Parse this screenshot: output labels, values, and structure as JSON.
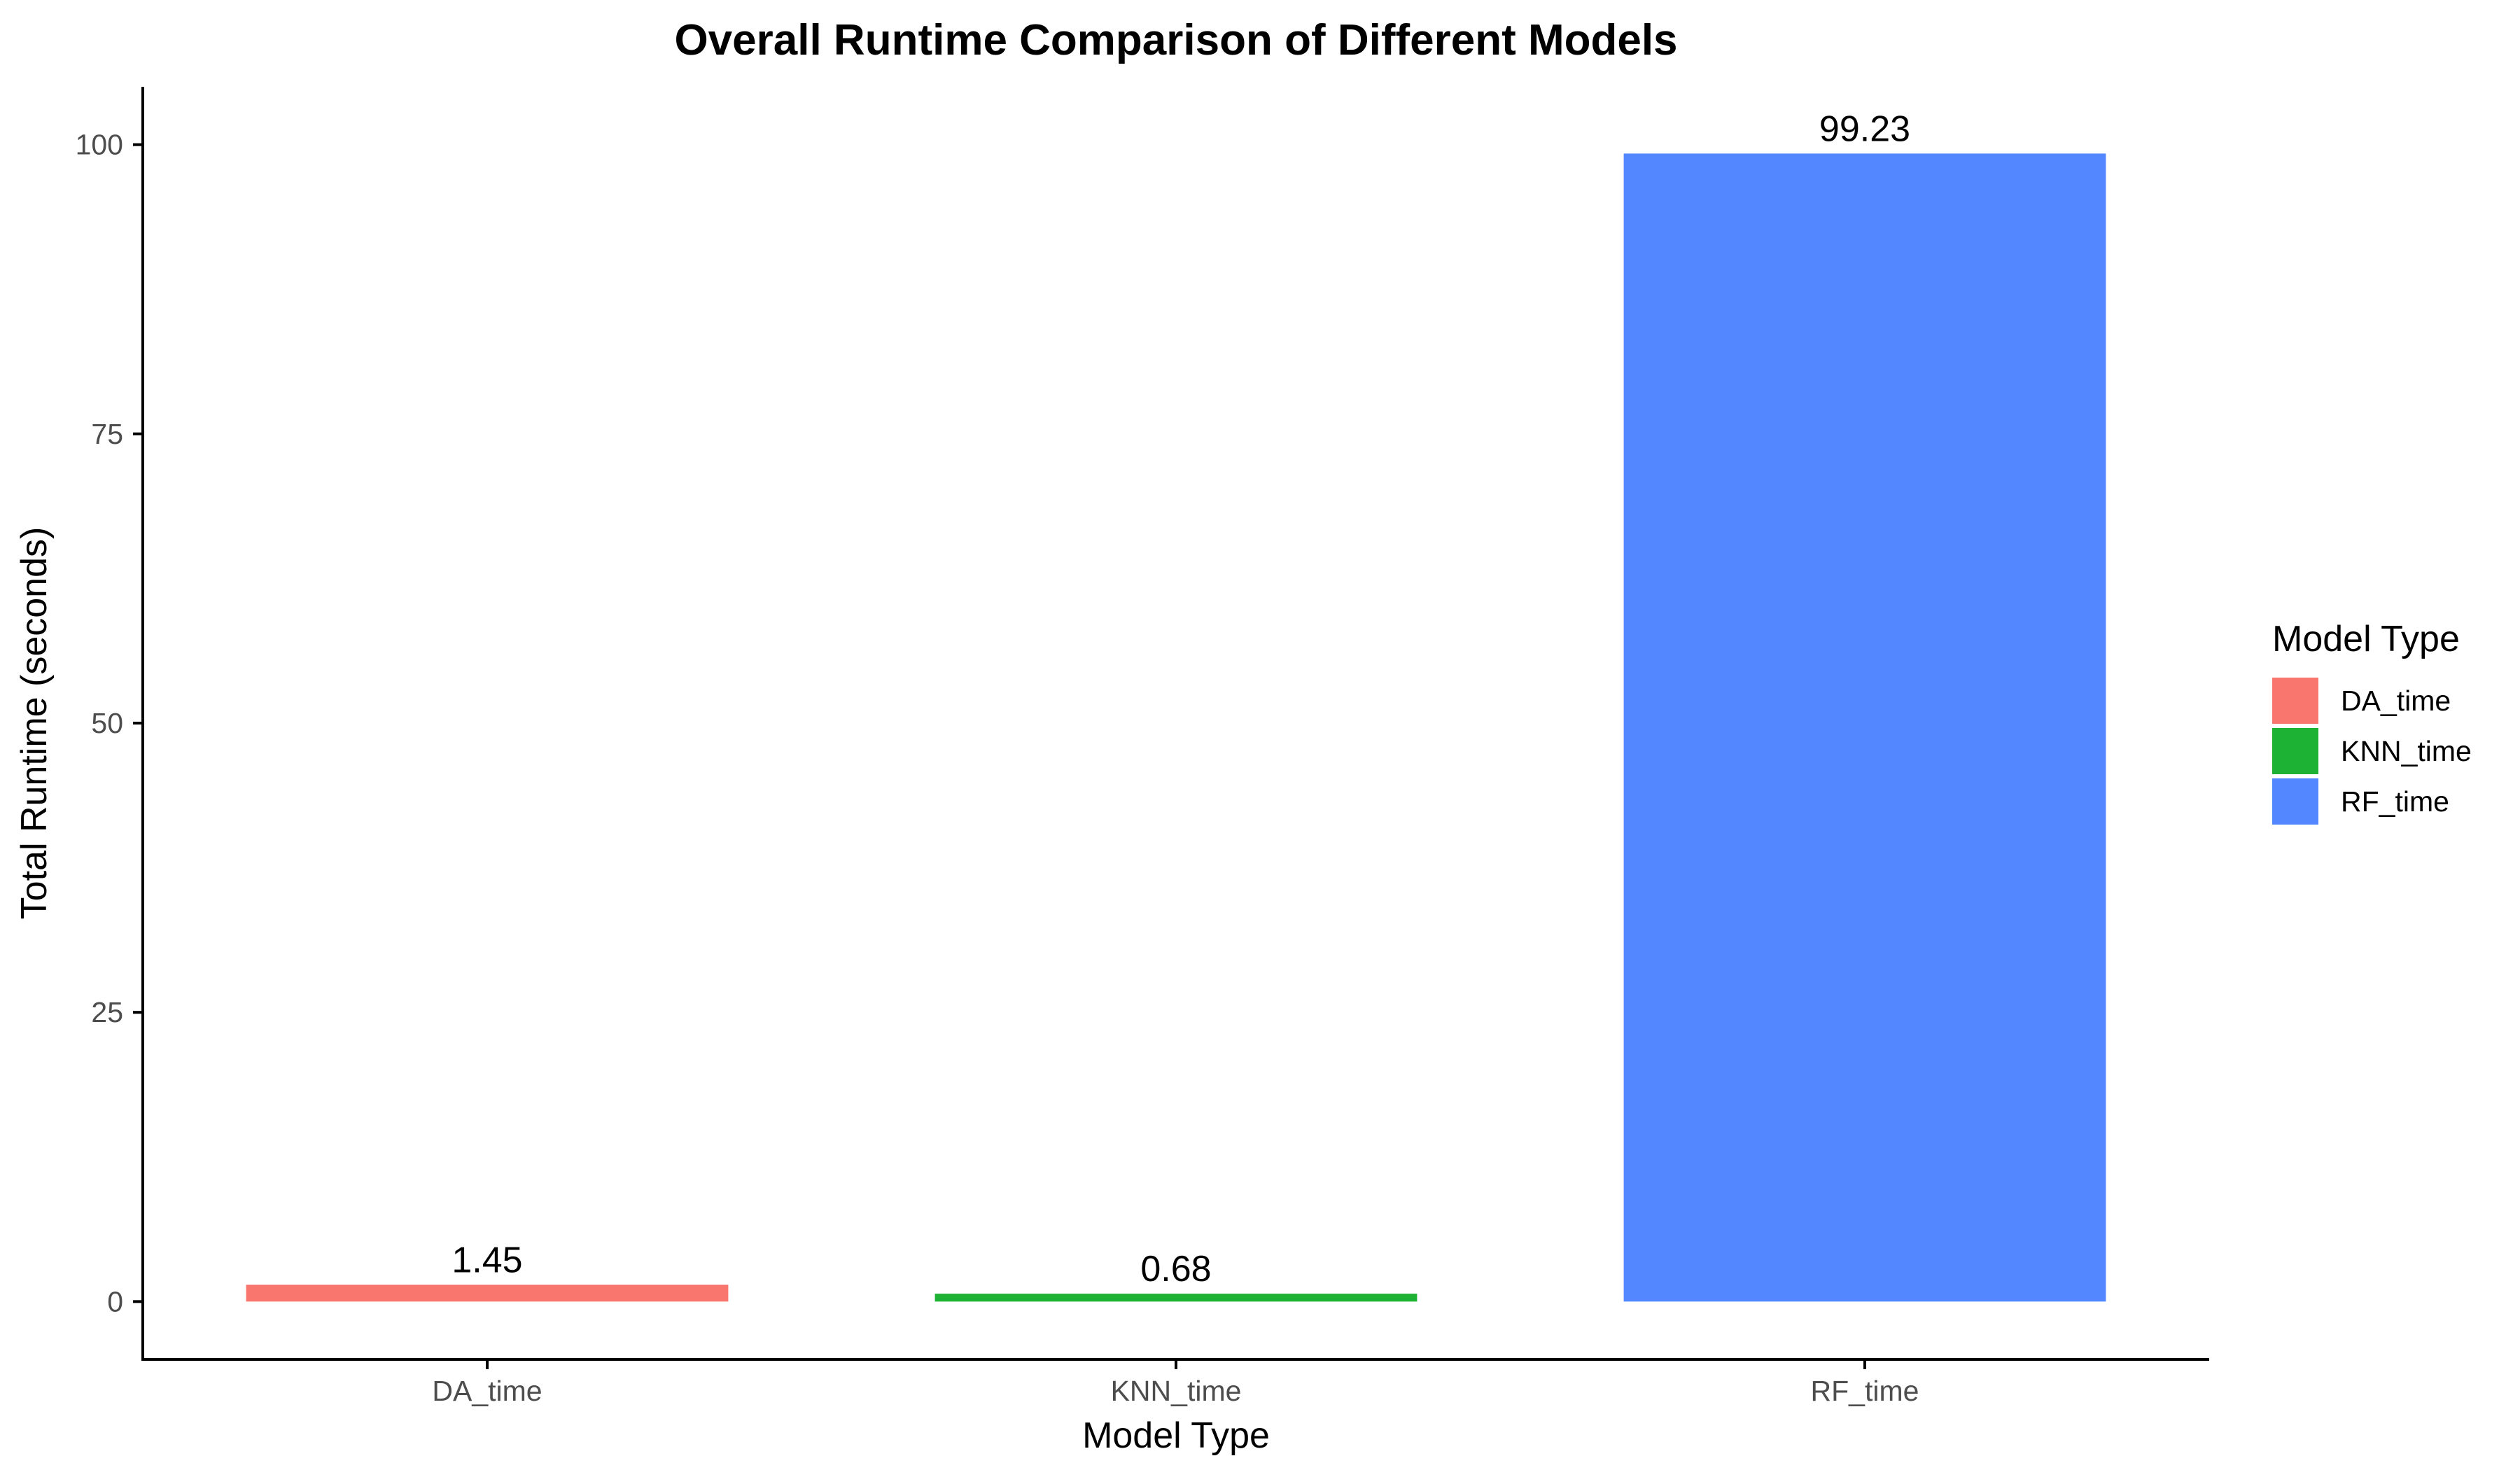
{
  "chart_data": {
    "type": "bar",
    "title": "Overall Runtime Comparison of Different Models",
    "xlabel": "Model Type",
    "ylabel": "Total Runtime (seconds)",
    "categories": [
      "DA_time",
      "KNN_time",
      "RF_time"
    ],
    "values": [
      1.45,
      0.68,
      99.23
    ],
    "data_labels": [
      "1.45",
      "0.68",
      "99.23"
    ],
    "colors": [
      "#F8766D",
      "#1DB233",
      "#5287FF"
    ],
    "ylim": [
      -5,
      105
    ],
    "yticks": [
      0,
      25,
      50,
      75,
      100
    ],
    "grid": false,
    "legend": {
      "title": "Model Type",
      "placement": "right",
      "entries": [
        "DA_time",
        "KNN_time",
        "RF_time"
      ]
    }
  }
}
